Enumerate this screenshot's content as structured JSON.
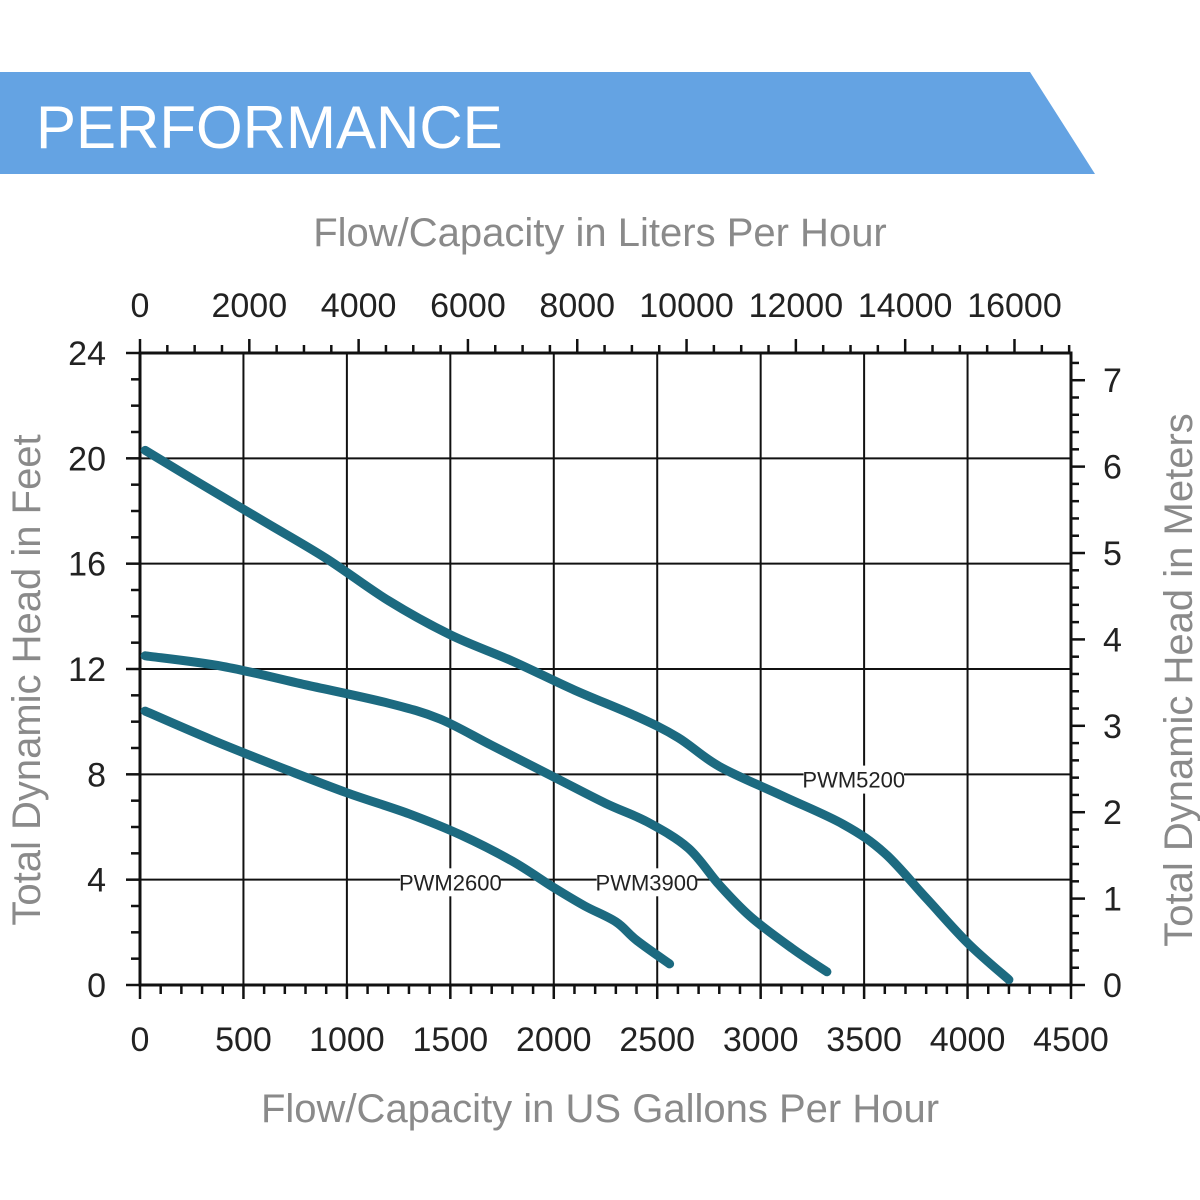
{
  "banner": {
    "title": "PERFORMANCE",
    "color": "#64a3e3"
  },
  "chart_data": {
    "type": "line",
    "title": "PERFORMANCE",
    "xlabel": "Flow/Capacity in US Gallons Per Hour",
    "x2label": "Flow/Capacity in Liters Per Hour",
    "ylabel": "Total Dynamic Head in Feet",
    "y2label": "Total Dynamic Head in Meters",
    "xlim": [
      0,
      4500
    ],
    "ylim": [
      0,
      24
    ],
    "x2lim": [
      0,
      17034
    ],
    "y2lim": [
      0,
      7.315
    ],
    "x_ticks": [
      "0",
      "500",
      "1000",
      "1500",
      "2000",
      "2500",
      "3000",
      "3500",
      "4000",
      "4500"
    ],
    "y_ticks": [
      "0",
      "4",
      "8",
      "12",
      "16",
      "20",
      "24"
    ],
    "x2_ticks": [
      "0",
      "2000",
      "4000",
      "6000",
      "8000",
      "10000",
      "12000",
      "14000",
      "16000"
    ],
    "y2_ticks": [
      "0",
      "1",
      "2",
      "3",
      "4",
      "5",
      "6",
      "7"
    ],
    "grid": true,
    "line_color": "#1c6a80",
    "series": [
      {
        "name": "PWM2600",
        "x": [
          25,
          350,
          700,
          1000,
          1300,
          1550,
          1800,
          2000,
          2150,
          2300,
          2400,
          2560
        ],
        "y": [
          10.4,
          9.3,
          8.2,
          7.3,
          6.5,
          5.7,
          4.7,
          3.7,
          3.0,
          2.4,
          1.7,
          0.8
        ]
      },
      {
        "name": "PWM3900",
        "x": [
          25,
          400,
          800,
          1200,
          1450,
          1700,
          2000,
          2250,
          2450,
          2650,
          2800,
          2950,
          3150,
          3320
        ],
        "y": [
          12.5,
          12.1,
          11.4,
          10.7,
          10.1,
          9.1,
          7.9,
          6.9,
          6.2,
          5.2,
          3.8,
          2.6,
          1.4,
          0.5
        ]
      },
      {
        "name": "PWM5200",
        "x": [
          25,
          300,
          600,
          900,
          1200,
          1500,
          1800,
          2100,
          2400,
          2600,
          2800,
          3100,
          3400,
          3600,
          3800,
          4000,
          4200
        ],
        "y": [
          20.3,
          19.0,
          17.6,
          16.2,
          14.6,
          13.3,
          12.3,
          11.2,
          10.2,
          9.4,
          8.3,
          7.2,
          6.1,
          5.0,
          3.3,
          1.6,
          0.2
        ]
      }
    ],
    "annotations": [
      {
        "series": "PWM2600",
        "text": "PWM2600",
        "x": 1500,
        "y": 3.9
      },
      {
        "series": "PWM3900",
        "text": "PWM3900",
        "x": 2450,
        "y": 3.9
      },
      {
        "series": "PWM5200",
        "text": "PWM5200",
        "x": 3450,
        "y": 7.8
      }
    ]
  }
}
